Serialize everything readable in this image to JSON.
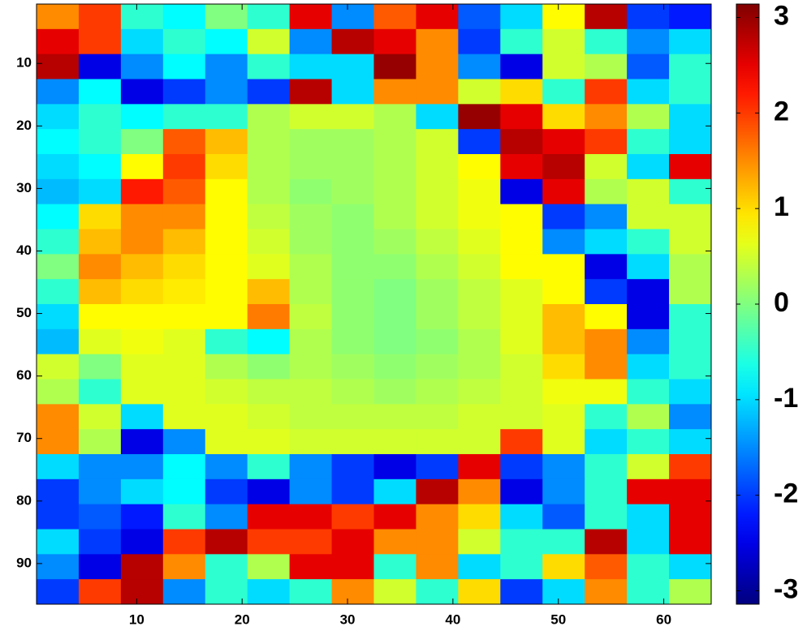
{
  "chart_data": {
    "type": "heatmap",
    "colormap": "jet",
    "xlim": [
      0.5,
      64.5
    ],
    "ylim": [
      96.5,
      0.5
    ],
    "xticks": [
      10,
      20,
      30,
      40,
      50,
      60
    ],
    "yticks": [
      10,
      20,
      30,
      40,
      50,
      60,
      70,
      80,
      90
    ],
    "clim": [
      -3.14,
      3.14
    ],
    "cticks": [
      -3,
      -2,
      -1,
      0,
      1,
      2,
      3
    ],
    "z": [
      [
        1.5,
        2,
        -0.5,
        -0.8,
        0,
        -0.5,
        2.5,
        -1.5,
        1.8,
        2.5,
        -1.8,
        -1,
        0.8,
        2.8,
        -2,
        -2.2
      ],
      [
        2.5,
        2,
        -1,
        -0.5,
        -0.8,
        0.5,
        -1.5,
        2.8,
        2.5,
        1.5,
        -2,
        -0.5,
        0.5,
        -0.5,
        -1.5,
        -1
      ],
      [
        2.8,
        -2.5,
        -1.5,
        -0.8,
        -1.5,
        -0.5,
        -1,
        -1,
        3,
        1.5,
        -1.5,
        -2.5,
        0.5,
        0.3,
        -1.8,
        -0.5
      ],
      [
        -1.5,
        -0.8,
        -2.5,
        -2,
        -1.5,
        -2,
        2.8,
        -1,
        1.5,
        1.5,
        0.5,
        1,
        -0.5,
        2,
        -1,
        -0.5
      ],
      [
        -1,
        -0.5,
        -0.8,
        -0.5,
        -0.5,
        0.3,
        0.5,
        0.5,
        0.3,
        -1,
        3,
        2.5,
        1,
        1.5,
        0.3,
        -1
      ],
      [
        -0.8,
        -0.5,
        0,
        1.8,
        1.2,
        0.3,
        0.2,
        0.2,
        0.3,
        0.5,
        -2,
        2.8,
        2.5,
        2,
        -0.5,
        -1
      ],
      [
        -1,
        -0.8,
        0.8,
        2,
        1,
        0.3,
        0.2,
        0.2,
        0.3,
        0.5,
        0.8,
        2.5,
        2.8,
        0.5,
        -1,
        2.5
      ],
      [
        -1.2,
        -1,
        2.2,
        1.8,
        0.8,
        0.3,
        0.1,
        0.2,
        0.3,
        0.5,
        0.7,
        -2.5,
        2.5,
        0.3,
        0.5,
        -0.5
      ],
      [
        -0.8,
        1,
        1.5,
        1.5,
        0.8,
        0.4,
        0.2,
        0.1,
        0.3,
        0.5,
        0.7,
        0.8,
        -2,
        -1.5,
        0.5,
        0.5
      ],
      [
        -0.5,
        1.2,
        1.5,
        1.2,
        0.8,
        0.5,
        0.2,
        0.1,
        0.2,
        0.4,
        0.6,
        0.8,
        -1.5,
        -1,
        -0.5,
        0.5
      ],
      [
        0,
        1.5,
        1.2,
        1,
        0.8,
        0.6,
        0.3,
        0.1,
        0.1,
        0.3,
        0.5,
        0.8,
        0.8,
        -2.5,
        -1,
        0.3
      ],
      [
        -0.5,
        1.2,
        1,
        0.9,
        0.8,
        1.2,
        0.3,
        0.1,
        0,
        0.2,
        0.4,
        0.6,
        0.8,
        -2,
        -2.5,
        0.3
      ],
      [
        -1,
        0.8,
        0.8,
        0.8,
        0.8,
        1.6,
        0.4,
        0.1,
        0,
        0.2,
        0.4,
        0.6,
        1.2,
        0.8,
        -2.5,
        -0.5
      ],
      [
        -1.2,
        0.6,
        0.7,
        0.6,
        -0.5,
        -0.8,
        0.3,
        0.1,
        0,
        0.1,
        0.3,
        0.6,
        1.2,
        1.5,
        -1.5,
        -0.5
      ],
      [
        0.5,
        0,
        0.6,
        0.6,
        0.3,
        0.1,
        0.3,
        0.2,
        0.1,
        0.2,
        0.3,
        0.5,
        1,
        1.5,
        -1,
        -0.5
      ],
      [
        0.3,
        -0.5,
        0.6,
        0.6,
        0.5,
        0.4,
        0.4,
        0.3,
        0.2,
        0.3,
        0.4,
        0.5,
        0.7,
        0.7,
        -0.5,
        -1
      ],
      [
        1.5,
        0.5,
        -1,
        0.6,
        0.6,
        0.5,
        0.4,
        0.4,
        0.4,
        0.4,
        0.5,
        0.5,
        0.6,
        -0.5,
        0.3,
        -1.5
      ],
      [
        1.5,
        0.3,
        -2.5,
        -1.5,
        0.6,
        0.6,
        0.5,
        0.5,
        0.5,
        0.5,
        0.5,
        2,
        0.6,
        -1,
        -0.5,
        -1
      ],
      [
        -1,
        -1.5,
        -1.5,
        -0.8,
        -1.5,
        -0.5,
        -1.5,
        -2,
        -2.5,
        -2,
        2.5,
        -2,
        -1.5,
        -0.5,
        0.5,
        2
      ],
      [
        -2,
        -1.5,
        -1,
        -0.8,
        -2,
        -2.5,
        -1.5,
        -2,
        -1,
        2.8,
        1.5,
        -2.5,
        -1.5,
        -0.5,
        2.5,
        2.5
      ],
      [
        -2,
        -1.8,
        -2.2,
        -0.5,
        -1.5,
        2.5,
        2.5,
        2,
        2.5,
        1.5,
        1,
        -1,
        -1.8,
        -0.5,
        -1,
        2.5
      ],
      [
        -1,
        -2,
        -2.5,
        2,
        2.8,
        2,
        2,
        2.5,
        1.5,
        1.5,
        0.5,
        -0.5,
        -0.5,
        2.8,
        -1,
        2.5
      ],
      [
        -1.5,
        -2.5,
        2.8,
        1.5,
        -0.5,
        0.3,
        2.5,
        2.5,
        -0.5,
        1.5,
        -1,
        -0.5,
        1,
        1.8,
        -0.5,
        -1
      ],
      [
        -2,
        2,
        2.8,
        -1.5,
        -0.5,
        -1,
        -0.5,
        1.5,
        0.5,
        -0.5,
        1,
        -2,
        -1,
        1.5,
        -0.5,
        0.3
      ]
    ]
  }
}
